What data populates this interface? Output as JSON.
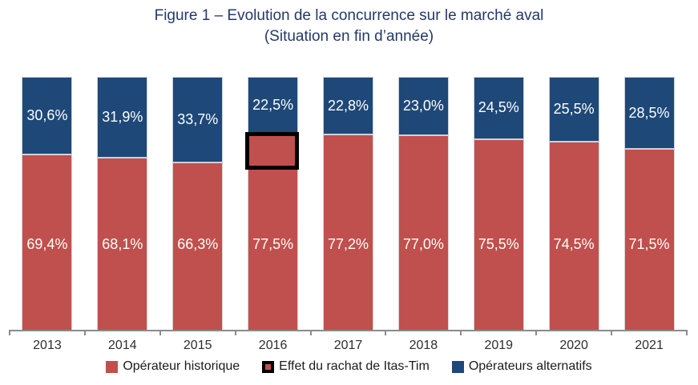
{
  "title": {
    "line1": "Figure 1 – Evolution de la concurrence sur le marché aval",
    "line2": "(Situation en fin d’année)"
  },
  "colors": {
    "historique": "#C0504D",
    "alternatifs": "#1E4878",
    "annotation": "#000000",
    "title": "#24396B",
    "axis": "#8B8B8B",
    "bar_label_text": "#FFFFFF"
  },
  "chart_data": {
    "type": "bar",
    "stacked": true,
    "ylim": [
      0,
      100
    ],
    "grid": false,
    "legend_position": "bottom",
    "categories": [
      "2013",
      "2014",
      "2015",
      "2016",
      "2017",
      "2018",
      "2019",
      "2020",
      "2021"
    ],
    "series": [
      {
        "name": "Opérateur historique",
        "color_key": "historique",
        "values": [
          69.4,
          68.1,
          66.3,
          77.5,
          77.2,
          77.0,
          75.5,
          74.5,
          71.5
        ],
        "labels": [
          "69,4%",
          "68,1%",
          "66,3%",
          "77,5%",
          "77,2%",
          "77,0%",
          "75,5%",
          "74,5%",
          "71,5%"
        ]
      },
      {
        "name": "Opérateurs alternatifs",
        "color_key": "alternatifs",
        "values": [
          30.6,
          31.9,
          33.7,
          22.5,
          22.8,
          23.0,
          24.5,
          25.5,
          28.5
        ],
        "labels": [
          "30,6%",
          "31,9%",
          "33,7%",
          "22,5%",
          "22,8%",
          "23,0%",
          "24,5%",
          "25,5%",
          "28,5%"
        ]
      }
    ],
    "annotation": {
      "category": "2016",
      "series": "Opérateur historique",
      "label": "Effet du rachat de Itas-Tim"
    }
  },
  "legend": [
    {
      "label": "Opérateur historique",
      "swatch": "historique"
    },
    {
      "label": "Effet du rachat de Itas-Tim",
      "swatch": "annotation"
    },
    {
      "label": "Opérateurs alternatifs",
      "swatch": "alternatifs"
    }
  ]
}
